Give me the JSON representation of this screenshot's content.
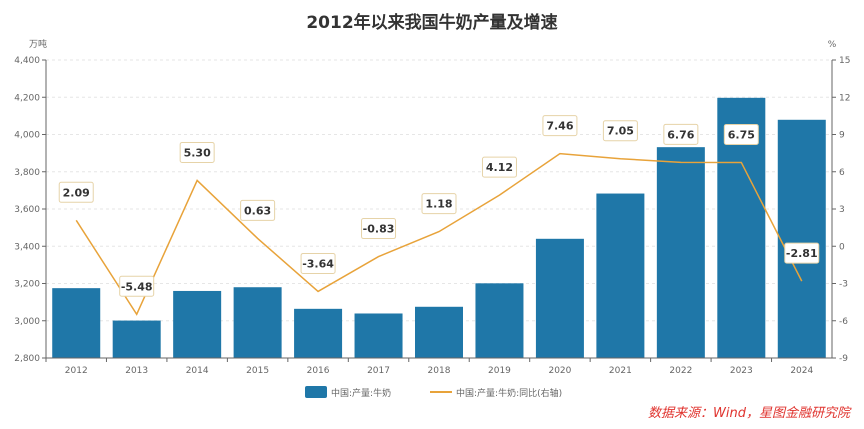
{
  "chart_data": {
    "type": "bar+line",
    "title": "2012年以来我国牛奶产量及增速",
    "categories": [
      "2012",
      "2013",
      "2014",
      "2015",
      "2016",
      "2017",
      "2018",
      "2019",
      "2020",
      "2021",
      "2022",
      "2023",
      "2024"
    ],
    "series": [
      {
        "name": "中国:产量:牛奶",
        "type": "bar",
        "axis": "left",
        "color": "#1f77a8",
        "values": [
          3175,
          3001,
          3160,
          3180,
          3064,
          3039,
          3075,
          3201,
          3440,
          3683,
          3932,
          4197,
          4079
        ]
      },
      {
        "name": "中国:产量:牛奶:同比(右轴)",
        "type": "line",
        "axis": "right",
        "color": "#e8a33a",
        "values": [
          2.09,
          -5.48,
          5.3,
          0.63,
          -3.64,
          -0.83,
          1.18,
          4.12,
          7.46,
          7.05,
          6.76,
          6.75,
          -2.81
        ]
      }
    ],
    "left_axis": {
      "unit": "万吨",
      "range": [
        2800,
        4400
      ],
      "ticks": [
        2800,
        3000,
        3200,
        3400,
        3600,
        3800,
        4000,
        4200,
        4400
      ]
    },
    "right_axis": {
      "unit": "%",
      "range": [
        -9,
        15
      ],
      "ticks": [
        -9,
        -6,
        -3,
        0,
        3,
        6,
        9,
        12,
        15
      ]
    },
    "grid": true,
    "legend": "bottom"
  },
  "source": "数据来源：Wind，星图金融研究院"
}
